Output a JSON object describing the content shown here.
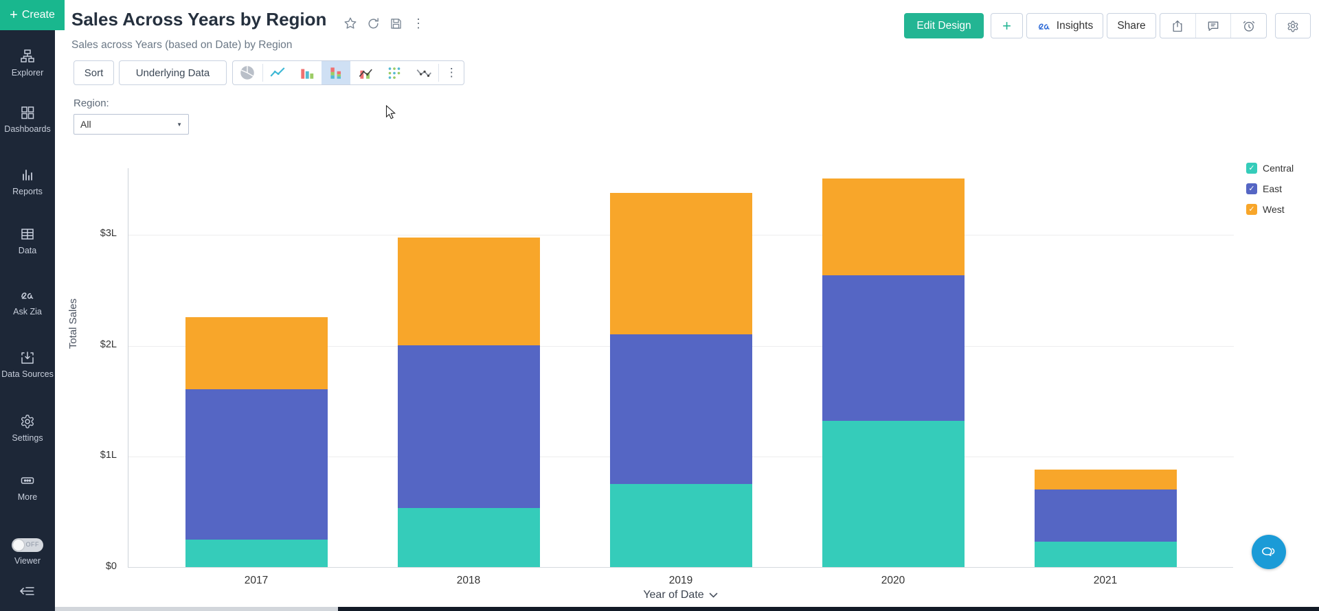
{
  "sidebar": {
    "create_plus": "+",
    "create_label": "Create",
    "items": [
      {
        "label": "Explorer"
      },
      {
        "label": "Dashboards"
      },
      {
        "label": "Reports"
      },
      {
        "label": "Data"
      },
      {
        "label": "Ask Zia"
      },
      {
        "label": "Data Sources"
      },
      {
        "label": "Settings"
      },
      {
        "label": "More"
      }
    ],
    "viewer_label": "Viewer",
    "viewer_state": "OFF"
  },
  "header": {
    "title": "Sales Across Years by Region",
    "subtitle": "Sales across Years (based on Date) by Region"
  },
  "actions": {
    "edit_design": "Edit Design",
    "plus": "+",
    "insights": "Insights",
    "share": "Share"
  },
  "toolbar": {
    "sort": "Sort",
    "underlying_data": "Underlying Data"
  },
  "filter": {
    "label": "Region:",
    "value": "All"
  },
  "icons": {
    "kebab": "⋮",
    "dropdown_caret": "▼",
    "check": "✓"
  },
  "chart_data": {
    "type": "bar",
    "stacked": true,
    "title": "Sales Across Years by Region",
    "categories": [
      "2017",
      "2018",
      "2019",
      "2020",
      "2021"
    ],
    "series": [
      {
        "name": "Central",
        "color": "#35ccba",
        "values": [
          0.25,
          0.53,
          0.75,
          1.32,
          0.23
        ]
      },
      {
        "name": "East",
        "color": "#5566c4",
        "values": [
          1.35,
          1.47,
          1.35,
          1.31,
          0.47
        ]
      },
      {
        "name": "West",
        "color": "#f8a62a",
        "values": [
          0.65,
          0.97,
          1.27,
          0.87,
          0.18
        ]
      }
    ],
    "xlabel": "Year of Date",
    "ylabel": "Total Sales",
    "y_ticks": [
      {
        "value": 0,
        "label": "$0"
      },
      {
        "value": 1,
        "label": "$1L"
      },
      {
        "value": 2,
        "label": "$2L"
      },
      {
        "value": 3,
        "label": "$3L"
      }
    ],
    "ylim": [
      0,
      3.6
    ],
    "grid": true,
    "legend_position": "top-right",
    "legend_checked": true
  }
}
